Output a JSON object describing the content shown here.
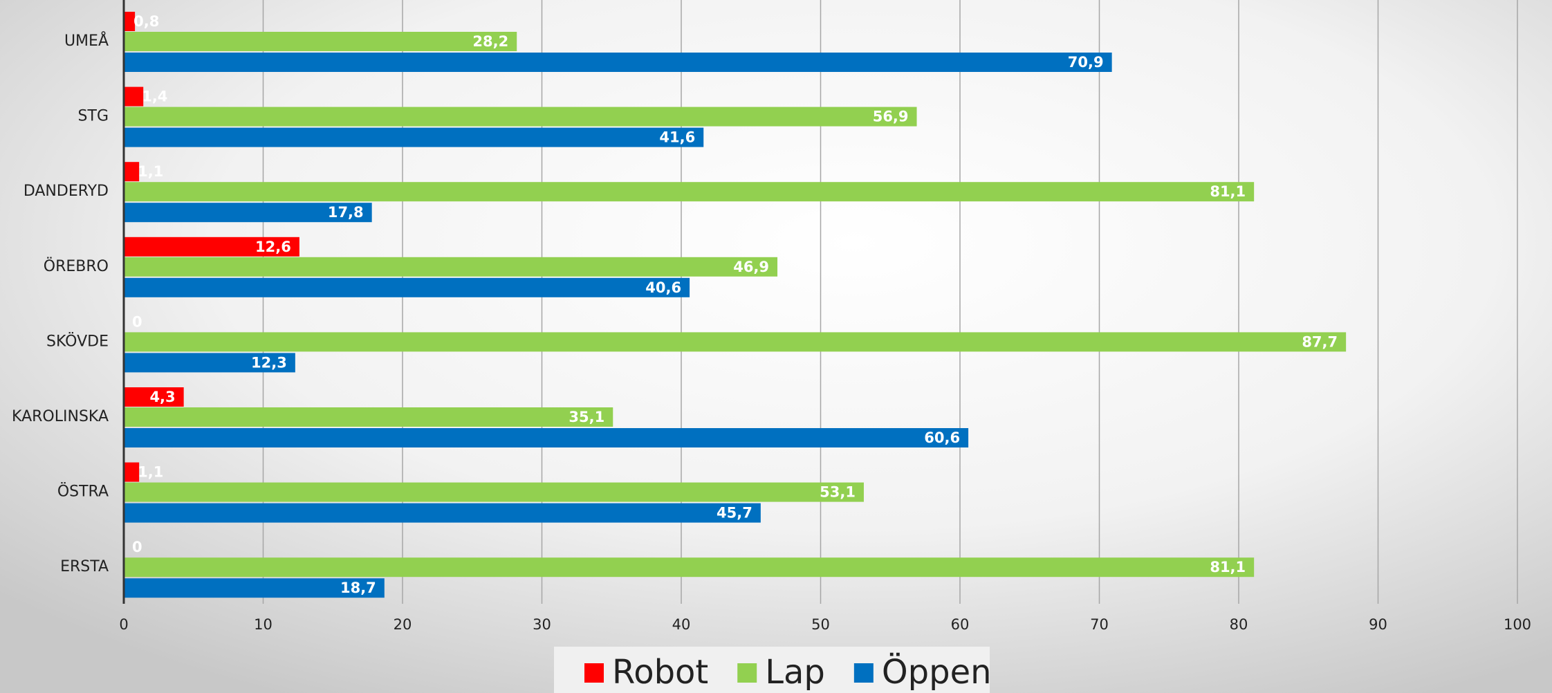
{
  "chart_data": {
    "type": "bar",
    "orientation": "horizontal",
    "categories": [
      "UMEÅ",
      "STG",
      "DANDERYD",
      "ÖREBRO",
      "SKÖVDE",
      "KAROLINSKA",
      "ÖSTRA",
      "ERSTA"
    ],
    "series": [
      {
        "name": "Robot",
        "color": "#ff0000",
        "values": [
          0.8,
          1.4,
          1.1,
          12.6,
          0,
          4.3,
          1.1,
          0
        ],
        "value_labels": [
          "0,8",
          "1,4",
          "1,1",
          "12,6",
          "0",
          "4,3",
          "1,1",
          "0"
        ]
      },
      {
        "name": "Lap",
        "color": "#92d050",
        "values": [
          28.2,
          56.9,
          81.1,
          46.9,
          87.7,
          35.1,
          53.1,
          81.1
        ],
        "value_labels": [
          "28,2",
          "56,9",
          "81,1",
          "46,9",
          "87,7",
          "35,1",
          "53,1",
          "81,1"
        ]
      },
      {
        "name": "Öppen",
        "color": "#0070c0",
        "values": [
          70.9,
          41.6,
          17.8,
          40.6,
          12.3,
          60.6,
          45.7,
          18.7
        ],
        "value_labels": [
          "70,9",
          "41,6",
          "17,8",
          "40,6",
          "12,3",
          "60,6",
          "45,7",
          "18,7"
        ]
      }
    ],
    "xlim": [
      0,
      100
    ],
    "xticks": [
      0,
      10,
      20,
      30,
      40,
      50,
      60,
      70,
      80,
      90,
      100
    ],
    "grid": true,
    "legend": "bottom"
  }
}
